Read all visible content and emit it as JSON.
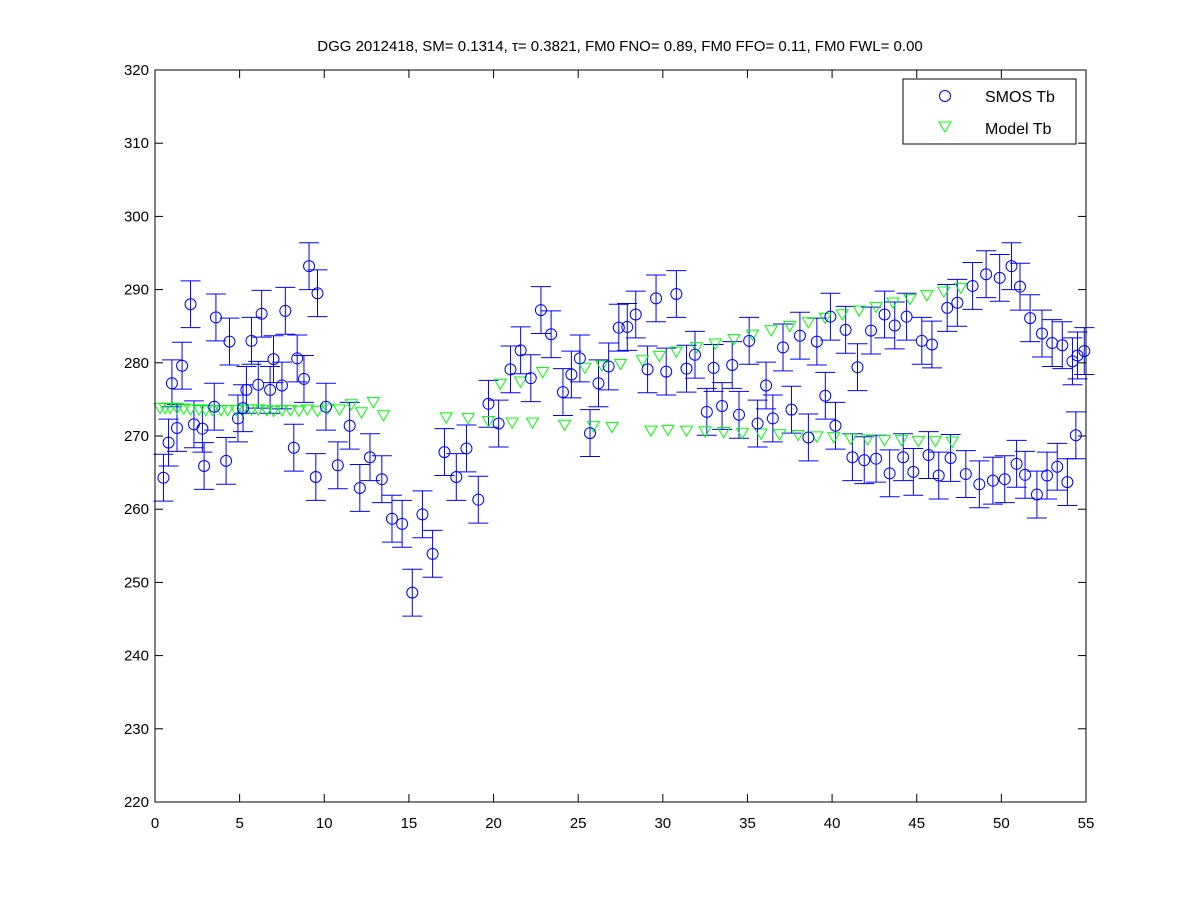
{
  "chart_data": {
    "type": "scatter",
    "title": "DGG 2012418, SM= 0.1314, τ= 0.3821, FM0 FNO= 0.89, FM0 FFO= 0.11, FM0 FWL= 0.00",
    "xlabel": "",
    "ylabel": "",
    "xlim": [
      0,
      55
    ],
    "ylim": [
      220,
      320
    ],
    "xticks": [
      0,
      5,
      10,
      15,
      20,
      25,
      30,
      35,
      40,
      45,
      50,
      55
    ],
    "yticks": [
      220,
      230,
      240,
      250,
      260,
      270,
      280,
      290,
      300,
      310,
      320
    ],
    "grid": false,
    "legend_position": "top-right",
    "series": [
      {
        "name": "SMOS Tb",
        "marker": "circle",
        "color": "#0000ff",
        "error": 3.2,
        "points": [
          [
            0.5,
            264.3
          ],
          [
            0.8,
            269.1
          ],
          [
            1.0,
            277.2
          ],
          [
            1.3,
            271.1
          ],
          [
            1.6,
            279.6
          ],
          [
            2.1,
            288.0
          ],
          [
            2.3,
            271.6
          ],
          [
            2.8,
            271.0
          ],
          [
            2.9,
            265.9
          ],
          [
            3.5,
            274.0
          ],
          [
            3.6,
            286.2
          ],
          [
            4.2,
            266.6
          ],
          [
            4.4,
            282.9
          ],
          [
            4.9,
            272.4
          ],
          [
            5.2,
            273.8
          ],
          [
            5.4,
            276.3
          ],
          [
            5.7,
            283.0
          ],
          [
            6.1,
            277.0
          ],
          [
            6.3,
            286.7
          ],
          [
            6.8,
            276.3
          ],
          [
            7.0,
            280.5
          ],
          [
            7.5,
            276.9
          ],
          [
            7.7,
            287.1
          ],
          [
            8.2,
            268.4
          ],
          [
            8.4,
            280.6
          ],
          [
            8.8,
            277.8
          ],
          [
            9.1,
            293.2
          ],
          [
            9.5,
            264.4
          ],
          [
            9.6,
            289.5
          ],
          [
            10.1,
            274.0
          ],
          [
            10.8,
            266.0
          ],
          [
            11.5,
            271.4
          ],
          [
            12.1,
            262.9
          ],
          [
            12.7,
            267.1
          ],
          [
            13.4,
            264.1
          ],
          [
            14.0,
            258.7
          ],
          [
            14.6,
            258.0
          ],
          [
            15.2,
            248.6
          ],
          [
            15.8,
            259.3
          ],
          [
            16.4,
            253.9
          ],
          [
            17.1,
            267.8
          ],
          [
            17.8,
            264.4
          ],
          [
            18.4,
            268.3
          ],
          [
            19.1,
            261.3
          ],
          [
            19.7,
            274.4
          ],
          [
            20.3,
            271.7
          ],
          [
            21.0,
            279.1
          ],
          [
            21.6,
            281.7
          ],
          [
            22.2,
            277.9
          ],
          [
            22.8,
            287.2
          ],
          [
            23.4,
            283.9
          ],
          [
            24.1,
            276.0
          ],
          [
            24.6,
            278.4
          ],
          [
            25.1,
            280.6
          ],
          [
            25.7,
            270.4
          ],
          [
            26.2,
            277.2
          ],
          [
            26.8,
            279.5
          ],
          [
            27.4,
            284.8
          ],
          [
            27.9,
            284.9
          ],
          [
            28.4,
            286.6
          ],
          [
            29.1,
            279.1
          ],
          [
            29.6,
            288.8
          ],
          [
            30.2,
            278.8
          ],
          [
            30.8,
            289.4
          ],
          [
            31.4,
            279.2
          ],
          [
            31.9,
            281.1
          ],
          [
            32.6,
            273.3
          ],
          [
            33.0,
            279.3
          ],
          [
            33.5,
            274.1
          ],
          [
            34.1,
            279.7
          ],
          [
            34.5,
            272.9
          ],
          [
            35.1,
            283.0
          ],
          [
            35.6,
            271.7
          ],
          [
            36.1,
            276.9
          ],
          [
            36.5,
            272.4
          ],
          [
            37.1,
            282.1
          ],
          [
            37.6,
            273.6
          ],
          [
            38.1,
            283.7
          ],
          [
            38.6,
            269.8
          ],
          [
            39.1,
            282.9
          ],
          [
            39.6,
            275.5
          ],
          [
            39.9,
            286.3
          ],
          [
            40.2,
            271.4
          ],
          [
            40.8,
            284.5
          ],
          [
            41.2,
            267.1
          ],
          [
            41.5,
            279.4
          ],
          [
            41.9,
            266.7
          ],
          [
            42.3,
            284.4
          ],
          [
            42.6,
            266.9
          ],
          [
            43.1,
            286.6
          ],
          [
            43.4,
            264.9
          ],
          [
            43.7,
            285.1
          ],
          [
            44.2,
            267.1
          ],
          [
            44.4,
            286.3
          ],
          [
            44.8,
            265.1
          ],
          [
            45.3,
            283.0
          ],
          [
            45.7,
            267.4
          ],
          [
            45.9,
            282.5
          ],
          [
            46.3,
            264.6
          ],
          [
            46.8,
            287.5
          ],
          [
            47.0,
            267.0
          ],
          [
            47.4,
            288.2
          ],
          [
            47.9,
            264.8
          ],
          [
            48.3,
            290.5
          ],
          [
            48.7,
            263.4
          ],
          [
            49.1,
            292.1
          ],
          [
            49.5,
            263.9
          ],
          [
            49.9,
            291.6
          ],
          [
            50.2,
            264.1
          ],
          [
            50.6,
            293.2
          ],
          [
            50.9,
            266.2
          ],
          [
            51.1,
            290.4
          ],
          [
            51.4,
            264.7
          ],
          [
            51.7,
            286.1
          ],
          [
            52.1,
            262.0
          ],
          [
            52.4,
            284.0
          ],
          [
            52.7,
            264.6
          ],
          [
            53.0,
            282.7
          ],
          [
            53.3,
            265.8
          ],
          [
            53.6,
            282.4
          ],
          [
            53.9,
            263.7
          ],
          [
            54.2,
            280.2
          ],
          [
            54.4,
            270.1
          ],
          [
            54.5,
            281.0
          ],
          [
            54.9,
            281.6
          ]
        ]
      },
      {
        "name": "Model Tb",
        "marker": "triangle-down",
        "color": "#00ff00",
        "points": [
          [
            0.3,
            273.8
          ],
          [
            0.6,
            273.8
          ],
          [
            0.9,
            273.8
          ],
          [
            1.3,
            273.8
          ],
          [
            1.7,
            273.7
          ],
          [
            2.1,
            273.6
          ],
          [
            2.6,
            273.6
          ],
          [
            3.0,
            273.5
          ],
          [
            3.4,
            273.5
          ],
          [
            3.9,
            273.5
          ],
          [
            4.3,
            273.5
          ],
          [
            4.8,
            273.5
          ],
          [
            5.2,
            273.6
          ],
          [
            5.7,
            273.6
          ],
          [
            6.1,
            273.6
          ],
          [
            6.6,
            273.5
          ],
          [
            7.0,
            273.4
          ],
          [
            7.5,
            273.5
          ],
          [
            8.0,
            273.5
          ],
          [
            8.5,
            273.4
          ],
          [
            9.0,
            273.6
          ],
          [
            9.6,
            273.4
          ],
          [
            10.2,
            273.7
          ],
          [
            10.9,
            273.6
          ],
          [
            11.6,
            274.3
          ],
          [
            12.2,
            273.2
          ],
          [
            12.9,
            274.6
          ],
          [
            13.5,
            272.8
          ],
          [
            17.2,
            272.5
          ],
          [
            18.5,
            272.4
          ],
          [
            19.7,
            272.0
          ],
          [
            20.4,
            277.1
          ],
          [
            21.1,
            271.8
          ],
          [
            21.6,
            277.4
          ],
          [
            22.3,
            271.8
          ],
          [
            22.9,
            278.7
          ],
          [
            24.2,
            271.5
          ],
          [
            25.4,
            279.3
          ],
          [
            25.9,
            271.3
          ],
          [
            26.4,
            279.6
          ],
          [
            27.0,
            271.2
          ],
          [
            27.5,
            279.8
          ],
          [
            28.8,
            280.3
          ],
          [
            29.3,
            270.7
          ],
          [
            29.8,
            280.9
          ],
          [
            30.3,
            270.8
          ],
          [
            30.8,
            281.5
          ],
          [
            31.4,
            270.7
          ],
          [
            32.0,
            282.1
          ],
          [
            32.5,
            270.6
          ],
          [
            33.1,
            282.6
          ],
          [
            33.6,
            270.5
          ],
          [
            34.2,
            283.2
          ],
          [
            34.7,
            270.4
          ],
          [
            35.3,
            283.8
          ],
          [
            35.8,
            270.3
          ],
          [
            36.4,
            284.4
          ],
          [
            36.9,
            270.2
          ],
          [
            37.5,
            285.0
          ],
          [
            38.0,
            270.1
          ],
          [
            38.6,
            285.5
          ],
          [
            39.1,
            269.9
          ],
          [
            39.6,
            286.1
          ],
          [
            40.1,
            269.8
          ],
          [
            40.6,
            286.6
          ],
          [
            41.1,
            269.6
          ],
          [
            41.6,
            287.1
          ],
          [
            42.1,
            269.5
          ],
          [
            42.6,
            287.6
          ],
          [
            43.1,
            269.4
          ],
          [
            43.6,
            288.2
          ],
          [
            44.1,
            269.4
          ],
          [
            44.6,
            288.7
          ],
          [
            45.1,
            269.3
          ],
          [
            45.6,
            289.2
          ],
          [
            46.1,
            269.3
          ],
          [
            46.6,
            289.7
          ],
          [
            47.1,
            269.2
          ],
          [
            47.6,
            290.2
          ]
        ]
      }
    ]
  }
}
